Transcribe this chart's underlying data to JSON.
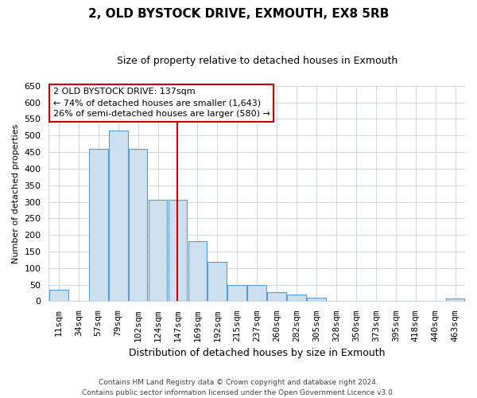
{
  "title": "2, OLD BYSTOCK DRIVE, EXMOUTH, EX8 5RB",
  "subtitle": "Size of property relative to detached houses in Exmouth",
  "xlabel": "Distribution of detached houses by size in Exmouth",
  "ylabel": "Number of detached properties",
  "bar_labels": [
    "11sqm",
    "34sqm",
    "57sqm",
    "79sqm",
    "102sqm",
    "124sqm",
    "147sqm",
    "169sqm",
    "192sqm",
    "215sqm",
    "237sqm",
    "260sqm",
    "282sqm",
    "305sqm",
    "328sqm",
    "350sqm",
    "373sqm",
    "395sqm",
    "418sqm",
    "440sqm",
    "463sqm"
  ],
  "bar_heights": [
    35,
    0,
    460,
    515,
    460,
    305,
    305,
    180,
    118,
    50,
    50,
    28,
    20,
    10,
    0,
    0,
    0,
    0,
    0,
    0,
    8
  ],
  "bar_color": "#cce0f0",
  "bar_edge_color": "#5b9bd5",
  "vline_x": 6.0,
  "vline_color": "#cc0000",
  "ylim": [
    0,
    650
  ],
  "yticks": [
    0,
    50,
    100,
    150,
    200,
    250,
    300,
    350,
    400,
    450,
    500,
    550,
    600,
    650
  ],
  "annotation_title": "2 OLD BYSTOCK DRIVE: 137sqm",
  "annotation_line1": "← 74% of detached houses are smaller (1,643)",
  "annotation_line2": "26% of semi-detached houses are larger (580) →",
  "annotation_box_facecolor": "#ffffff",
  "annotation_box_edgecolor": "#cc0000",
  "footnote1": "Contains HM Land Registry data © Crown copyright and database right 2024.",
  "footnote2": "Contains public sector information licensed under the Open Government Licence v3.0.",
  "bg_color": "#ffffff",
  "grid_color": "#d0d8e0",
  "title_fontsize": 11,
  "subtitle_fontsize": 9,
  "ylabel_fontsize": 8,
  "xlabel_fontsize": 9,
  "tick_fontsize": 8,
  "annot_fontsize": 8
}
